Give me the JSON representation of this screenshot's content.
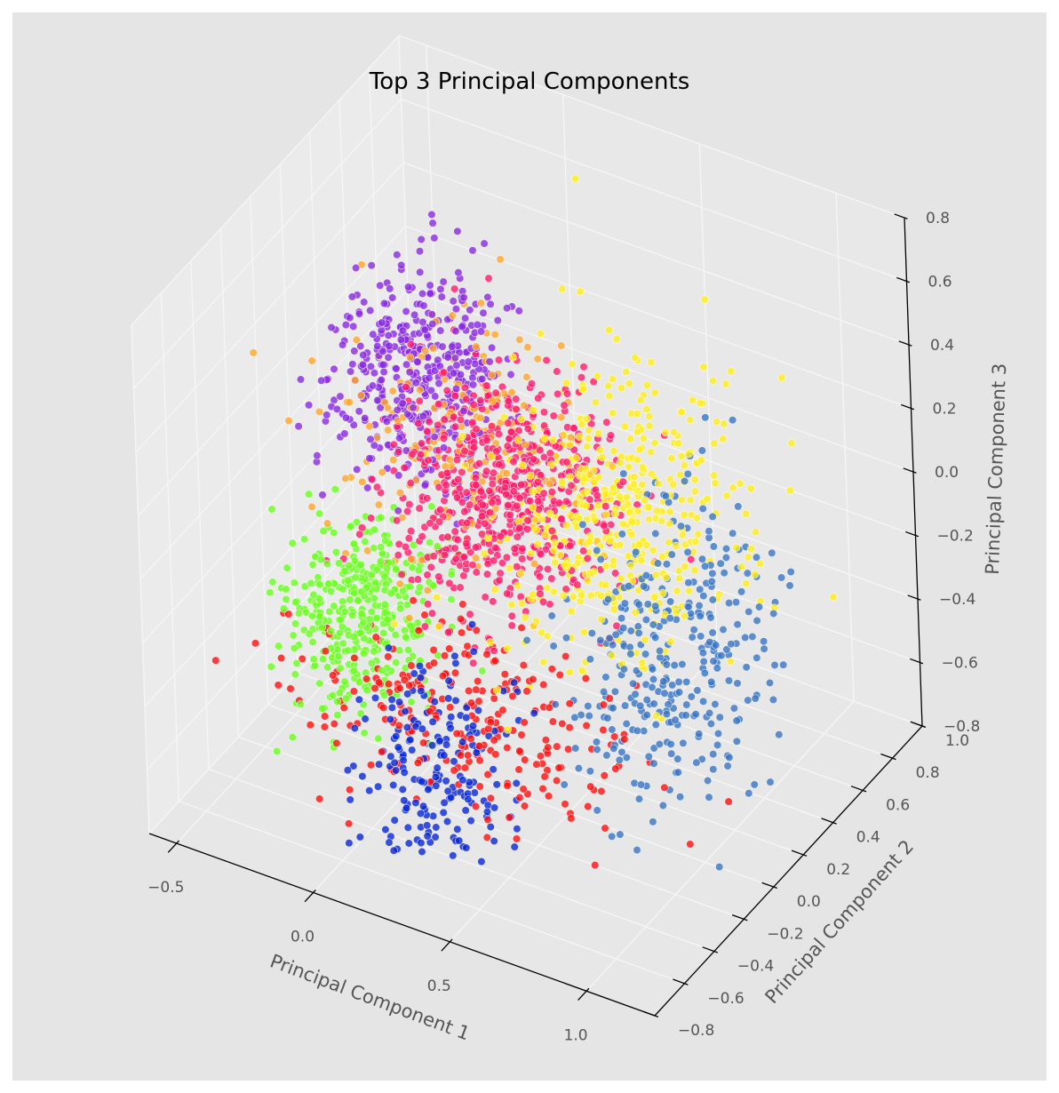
{
  "chart_data": {
    "type": "scatter",
    "title": "Top 3 Principal Components",
    "xlabel": "Principal Component 1",
    "ylabel": "Principal Component 2",
    "zlabel": "Principal Component 3",
    "projection": "3d",
    "grid": true,
    "legend": "none",
    "xlim": [
      -0.6,
      1.25
    ],
    "ylim": [
      -0.8,
      1.0
    ],
    "zlim": [
      -0.8,
      0.8
    ],
    "x_ticks": [
      "−0.5",
      "0.0",
      "0.5",
      "1.0"
    ],
    "y_ticks": [
      "−0.8",
      "−0.6",
      "−0.4",
      "−0.2",
      "0.0",
      "0.2",
      "0.4",
      "0.6",
      "0.8",
      "1.0"
    ],
    "z_ticks": [
      "−0.8",
      "−0.6",
      "−0.4",
      "−0.2",
      "0.0",
      "0.2",
      "0.4",
      "0.6",
      "0.8"
    ],
    "colors": {
      "figure_bg": "#e5e5e5",
      "pane_left": "#ebebeb",
      "pane_back": "#e8e8e8",
      "pane_floor": "#e7e7e7",
      "grid": "#f5f5f5",
      "axis": "#000000"
    },
    "clusters": [
      {
        "color": "#8a2be2",
        "count": 430,
        "center": [
          -0.18,
          0.3,
          0.22
        ],
        "spread": [
          0.13,
          0.16,
          0.14
        ]
      },
      {
        "color": "#ffa62b",
        "count": 200,
        "center": [
          0.0,
          0.25,
          0.1
        ],
        "spread": [
          0.18,
          0.2,
          0.17
        ]
      },
      {
        "color": "#ff1c6b",
        "count": 650,
        "center": [
          0.22,
          0.15,
          0.05
        ],
        "spread": [
          0.18,
          0.2,
          0.15
        ]
      },
      {
        "color": "#ffee1f",
        "count": 460,
        "center": [
          0.58,
          0.2,
          0.05
        ],
        "spread": [
          0.2,
          0.24,
          0.2
        ]
      },
      {
        "color": "#3a75c4",
        "count": 330,
        "center": [
          0.85,
          0.1,
          -0.22
        ],
        "spread": [
          0.14,
          0.24,
          0.2
        ]
      },
      {
        "color": "#6cff20",
        "count": 380,
        "center": [
          -0.18,
          -0.12,
          -0.32
        ],
        "spread": [
          0.12,
          0.15,
          0.13
        ]
      },
      {
        "color": "#ff1010",
        "count": 260,
        "center": [
          0.25,
          -0.25,
          -0.45
        ],
        "spread": [
          0.28,
          0.15,
          0.13
        ]
      },
      {
        "color": "#0a28d6",
        "count": 190,
        "center": [
          0.22,
          -0.35,
          -0.55
        ],
        "spread": [
          0.12,
          0.14,
          0.14
        ]
      }
    ]
  }
}
